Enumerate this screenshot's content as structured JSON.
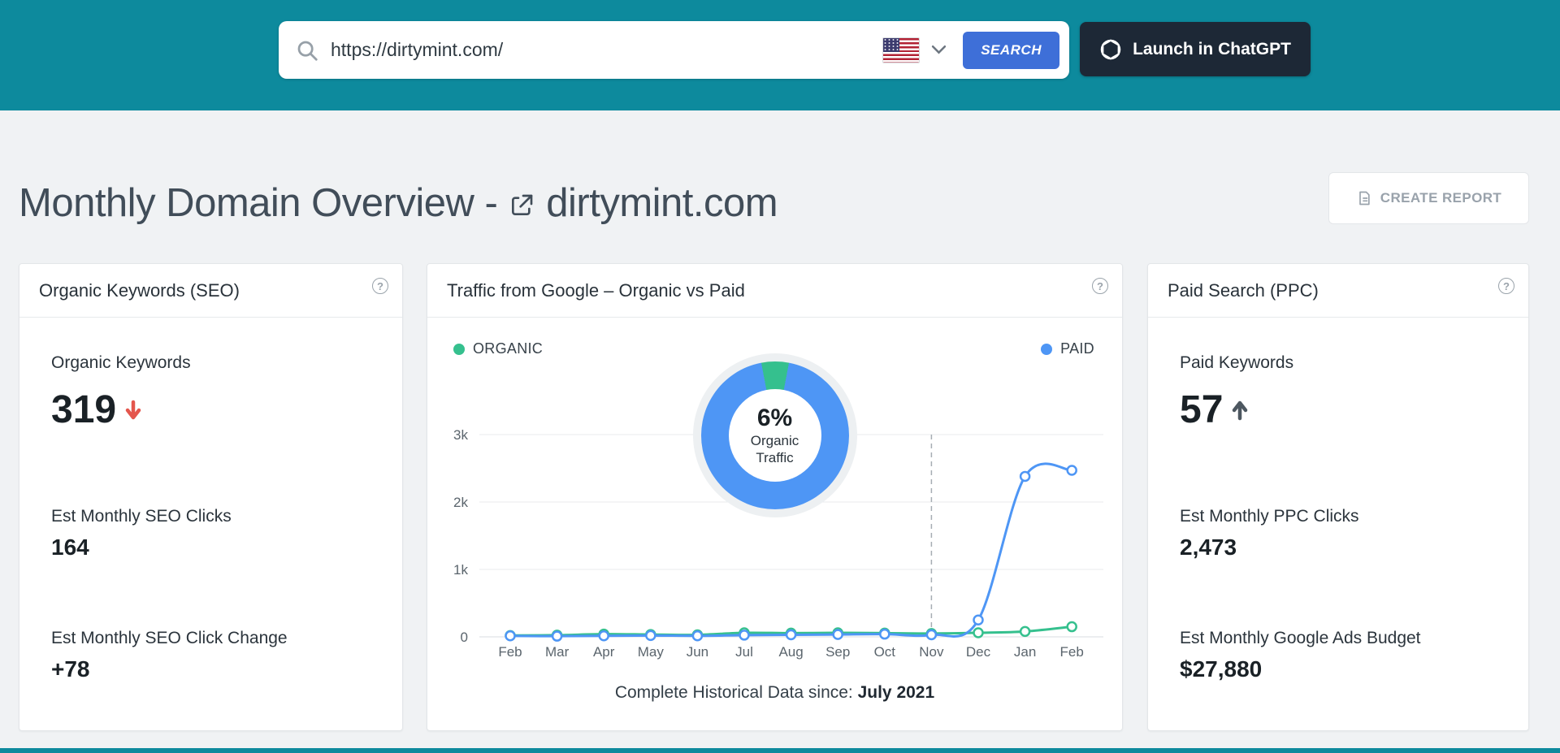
{
  "ui": {
    "help_glyph": "?"
  },
  "colors": {
    "header_teal": "#0d8a9d",
    "search_button_blue": "#3e6fd8",
    "chatgpt_button_dark": "#1d2836",
    "organic_green": "#35c08e",
    "paid_blue": "#4e96f5",
    "trend_down_red": "#e4564d"
  },
  "header": {
    "search_value": "https://dirtymint.com/",
    "search_button": "SEARCH",
    "country": "United States flag",
    "chatgpt_button": "Launch in ChatGPT"
  },
  "page": {
    "title": "Monthly Domain Overview -",
    "domain": "dirtymint.com",
    "create_report": "CREATE REPORT"
  },
  "cards": {
    "seo": {
      "title": "Organic Keywords (SEO)",
      "metrics": [
        {
          "label": "Organic Keywords",
          "value": "319",
          "trend": "down"
        },
        {
          "label": "Est Monthly SEO Clicks",
          "value": "164"
        },
        {
          "label": "Est Monthly SEO Click Change",
          "value": "+78"
        }
      ]
    },
    "traffic": {
      "title": "Traffic from Google – Organic vs Paid",
      "legend": [
        {
          "label": "ORGANIC",
          "color": "#35c08e"
        },
        {
          "label": "PAID",
          "color": "#4e96f5"
        }
      ],
      "donut": {
        "percent": "6%",
        "line1": "Organic",
        "line2": "Traffic"
      },
      "caption": "Complete Historical Data since: ",
      "caption_bold": "July 2021"
    },
    "ppc": {
      "title": "Paid Search (PPC)",
      "metrics": [
        {
          "label": "Paid Keywords",
          "value": "57",
          "trend": "up"
        },
        {
          "label": "Est Monthly PPC Clicks",
          "value": "2,473"
        },
        {
          "label": "Est Monthly Google Ads Budget",
          "value": "$27,880"
        }
      ]
    }
  },
  "chart_data": {
    "type": "line",
    "title": "Traffic from Google – Organic vs Paid",
    "x": [
      "Feb",
      "Mar",
      "Apr",
      "May",
      "Jun",
      "Jul",
      "Aug",
      "Sep",
      "Oct",
      "Nov",
      "Dec",
      "Jan",
      "Feb"
    ],
    "series": [
      {
        "name": "ORGANIC",
        "color": "#35c08e",
        "values": [
          20,
          25,
          40,
          35,
          30,
          60,
          55,
          60,
          55,
          50,
          60,
          80,
          150
        ]
      },
      {
        "name": "PAID",
        "color": "#4e96f5",
        "values": [
          15,
          10,
          15,
          20,
          15,
          25,
          30,
          35,
          40,
          30,
          250,
          2380,
          2470
        ]
      }
    ],
    "yticks": [
      0,
      1000,
      2000,
      3000
    ],
    "ytick_labels": [
      "0",
      "1k",
      "2k",
      "3k"
    ],
    "ylim": [
      0,
      3000
    ],
    "grid": true,
    "legend_position": "top",
    "dashed_vline_index": 9,
    "donut": {
      "organic_percent": 6,
      "paid_percent": 94,
      "center_text": "6% Organic Traffic"
    }
  }
}
